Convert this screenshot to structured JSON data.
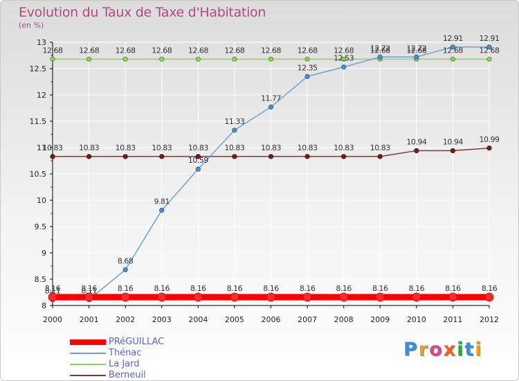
{
  "brand": "Proxiti",
  "colors": {
    "title": "#b04a7a",
    "legend_text": "#5a62c8",
    "axis": "#000000",
    "grid": "#ffffff"
  },
  "chart_data": {
    "type": "line",
    "title": "Evolution du Taux de Taxe d'Habitation",
    "subtitle": "(en %)",
    "xlabel": "",
    "ylabel": "",
    "x": [
      "2000",
      "2001",
      "2002",
      "2003",
      "2004",
      "2005",
      "2006",
      "2007",
      "2008",
      "2009",
      "2010",
      "2011",
      "2012"
    ],
    "ylim": [
      8,
      13
    ],
    "yticks": [
      "8",
      "8.5",
      "9",
      "9.5",
      "10",
      "10.5",
      "11",
      "11.5",
      "12",
      "12.5",
      "13"
    ],
    "legend_position": "bottom-left",
    "series": [
      {
        "name": "PRéGUILLAC",
        "color": "#ff0000",
        "values": [
          8.16,
          8.16,
          8.16,
          8.16,
          8.16,
          8.16,
          8.16,
          8.16,
          8.16,
          8.16,
          8.16,
          8.16,
          8.16
        ],
        "labels": [
          "8.16",
          "8.16",
          "8.16",
          "8.16",
          "8.16",
          "8.16",
          "8.16",
          "8.16",
          "8.16",
          "8.16",
          "8.16",
          "8.16",
          "8.16"
        ]
      },
      {
        "name": "Thénac",
        "color": "#6f9fd2",
        "values": [
          8.11,
          8.11,
          8.68,
          9.81,
          10.59,
          11.33,
          11.77,
          12.35,
          12.53,
          12.72,
          12.72,
          12.91,
          12.91
        ],
        "labels": [
          "8.11",
          "8.11",
          "8.68",
          "9.81",
          "10.59",
          "11.33",
          "11.77",
          "12.35",
          "12.53",
          "12.72",
          "12.72",
          "12.91",
          "12.91"
        ]
      },
      {
        "name": "La Jard",
        "color": "#8fd35a",
        "values": [
          12.68,
          12.68,
          12.68,
          12.68,
          12.68,
          12.68,
          12.68,
          12.68,
          12.68,
          12.68,
          12.68,
          12.68,
          12.68
        ],
        "labels": [
          "12.68",
          "12.68",
          "12.68",
          "12.68",
          "12.68",
          "12.68",
          "12.68",
          "12.68",
          "12.68",
          "12.68",
          "12.68",
          "12.68",
          "12.68"
        ]
      },
      {
        "name": "Berneuil",
        "color": "#7a3a3a",
        "values": [
          10.83,
          10.83,
          10.83,
          10.83,
          10.83,
          10.83,
          10.83,
          10.83,
          10.83,
          10.83,
          10.94,
          10.94,
          10.99
        ],
        "labels": [
          "10.83",
          "10.83",
          "10.83",
          "10.83",
          "10.83",
          "10.83",
          "10.83",
          "10.83",
          "10.83",
          "10.83",
          "10.94",
          "10.94",
          "10.99"
        ]
      }
    ]
  }
}
